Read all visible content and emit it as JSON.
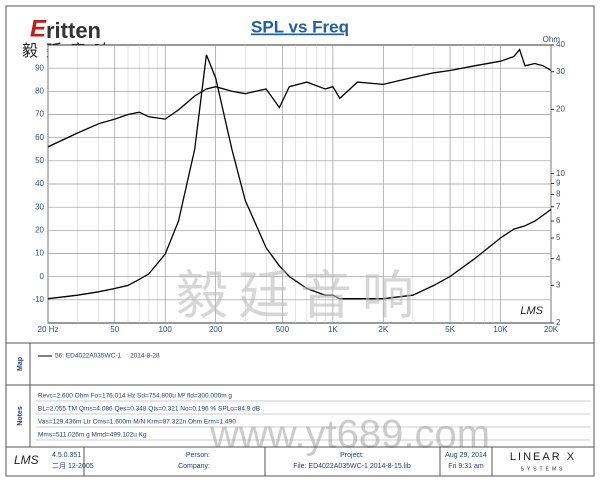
{
  "logo": {
    "brand": "ritten",
    "chinese": "毅廷音响"
  },
  "chart_data": {
    "type": "line",
    "title": "SPL vs Freq",
    "y2_label": "Ohm",
    "x": [
      20,
      30,
      40,
      50,
      60,
      70,
      80,
      100,
      120,
      150,
      176,
      200,
      250,
      300,
      400,
      480,
      550,
      700,
      900,
      1000,
      1100,
      1400,
      2000,
      3000,
      4000,
      5000,
      7000,
      10000,
      12000,
      13000,
      14000,
      16000,
      18000,
      20000
    ],
    "series": [
      {
        "name": "56: ED4022A035WC-1",
        "color": "#000000",
        "values": [
          56,
          62,
          66,
          68,
          70,
          71,
          69,
          68,
          72,
          78,
          81,
          82,
          80,
          79,
          81,
          73,
          82,
          84,
          81,
          82,
          77,
          84,
          83,
          86,
          88,
          89,
          91,
          93,
          95,
          98,
          91,
          92,
          91,
          89
        ]
      },
      {
        "color": "#000000",
        "axis": "y2",
        "values": [
          2.6,
          2.7,
          2.8,
          2.9,
          3.0,
          3.2,
          3.4,
          4.2,
          6,
          13,
          36,
          28,
          13,
          7.5,
          4.5,
          3.7,
          3.3,
          2.9,
          2.7,
          2.7,
          2.6,
          2.6,
          2.6,
          2.7,
          3.0,
          3.3,
          4.0,
          5.0,
          5.5,
          5.6,
          5.7,
          6.0,
          6.4,
          6.8
        ]
      }
    ],
    "xscale": "log",
    "xlim": [
      20,
      20000
    ],
    "xticks": [
      {
        "value": 20,
        "label": "20 Hz"
      },
      50,
      100,
      200,
      500,
      {
        "value": 1000,
        "label": "1K"
      },
      {
        "value": 2000,
        "label": "2K"
      },
      {
        "value": 5000,
        "label": "5K"
      },
      {
        "value": 10000,
        "label": "10K"
      },
      {
        "value": 20000,
        "label": "20K"
      }
    ],
    "xminor": [
      30,
      40,
      60,
      70,
      80,
      90,
      300,
      400,
      600,
      700,
      800,
      900,
      3000,
      4000,
      6000,
      7000,
      8000,
      9000
    ],
    "ylim": [
      -20,
      100
    ],
    "yticks": [
      -10,
      0,
      10,
      20,
      30,
      40,
      50,
      60,
      70,
      80,
      90
    ],
    "y2scale": "log",
    "y2lim": [
      2,
      40
    ],
    "y2ticks": [
      2,
      3,
      4,
      5,
      6,
      7,
      8,
      9,
      10,
      20,
      30,
      40
    ],
    "grid": true,
    "watermark": "LMS"
  },
  "watermark": {
    "chinese": "毅廷音响",
    "url": "www.yt689.com"
  },
  "map": {
    "label": "Map",
    "entry_date": "2014-8-28"
  },
  "notes": {
    "label": "Notes",
    "lines": [
      "Revc=2.600 Ohm  Fo=176.014 Hz  Sd=754.800u M²  fld=300.000m g",
      "BL=2.055 TM  Qms=4.086  Qes=0.348  Qts=0.321  No=0.196 %  SPLo=84.9 dB",
      "Vas=129.436m Ltr  Cms=1.600m M/N  Krm=87.322n Ohm  Erm=1.490",
      "Mms=511.026m g  Mmd=499.102u Kg"
    ]
  },
  "footer": {
    "logo": "LMS",
    "version": "4.5.0.351",
    "build": "二月 12-2005",
    "person": "Person:",
    "company": "Company:",
    "project": "Project:",
    "file": "File: ED4022A035WC-1     2014-8-15.lib",
    "date": "Aug 29, 2014",
    "time": "Fri  9:31 am",
    "brand": "LINEAR X",
    "brand_sub": "SYSTEMS"
  }
}
